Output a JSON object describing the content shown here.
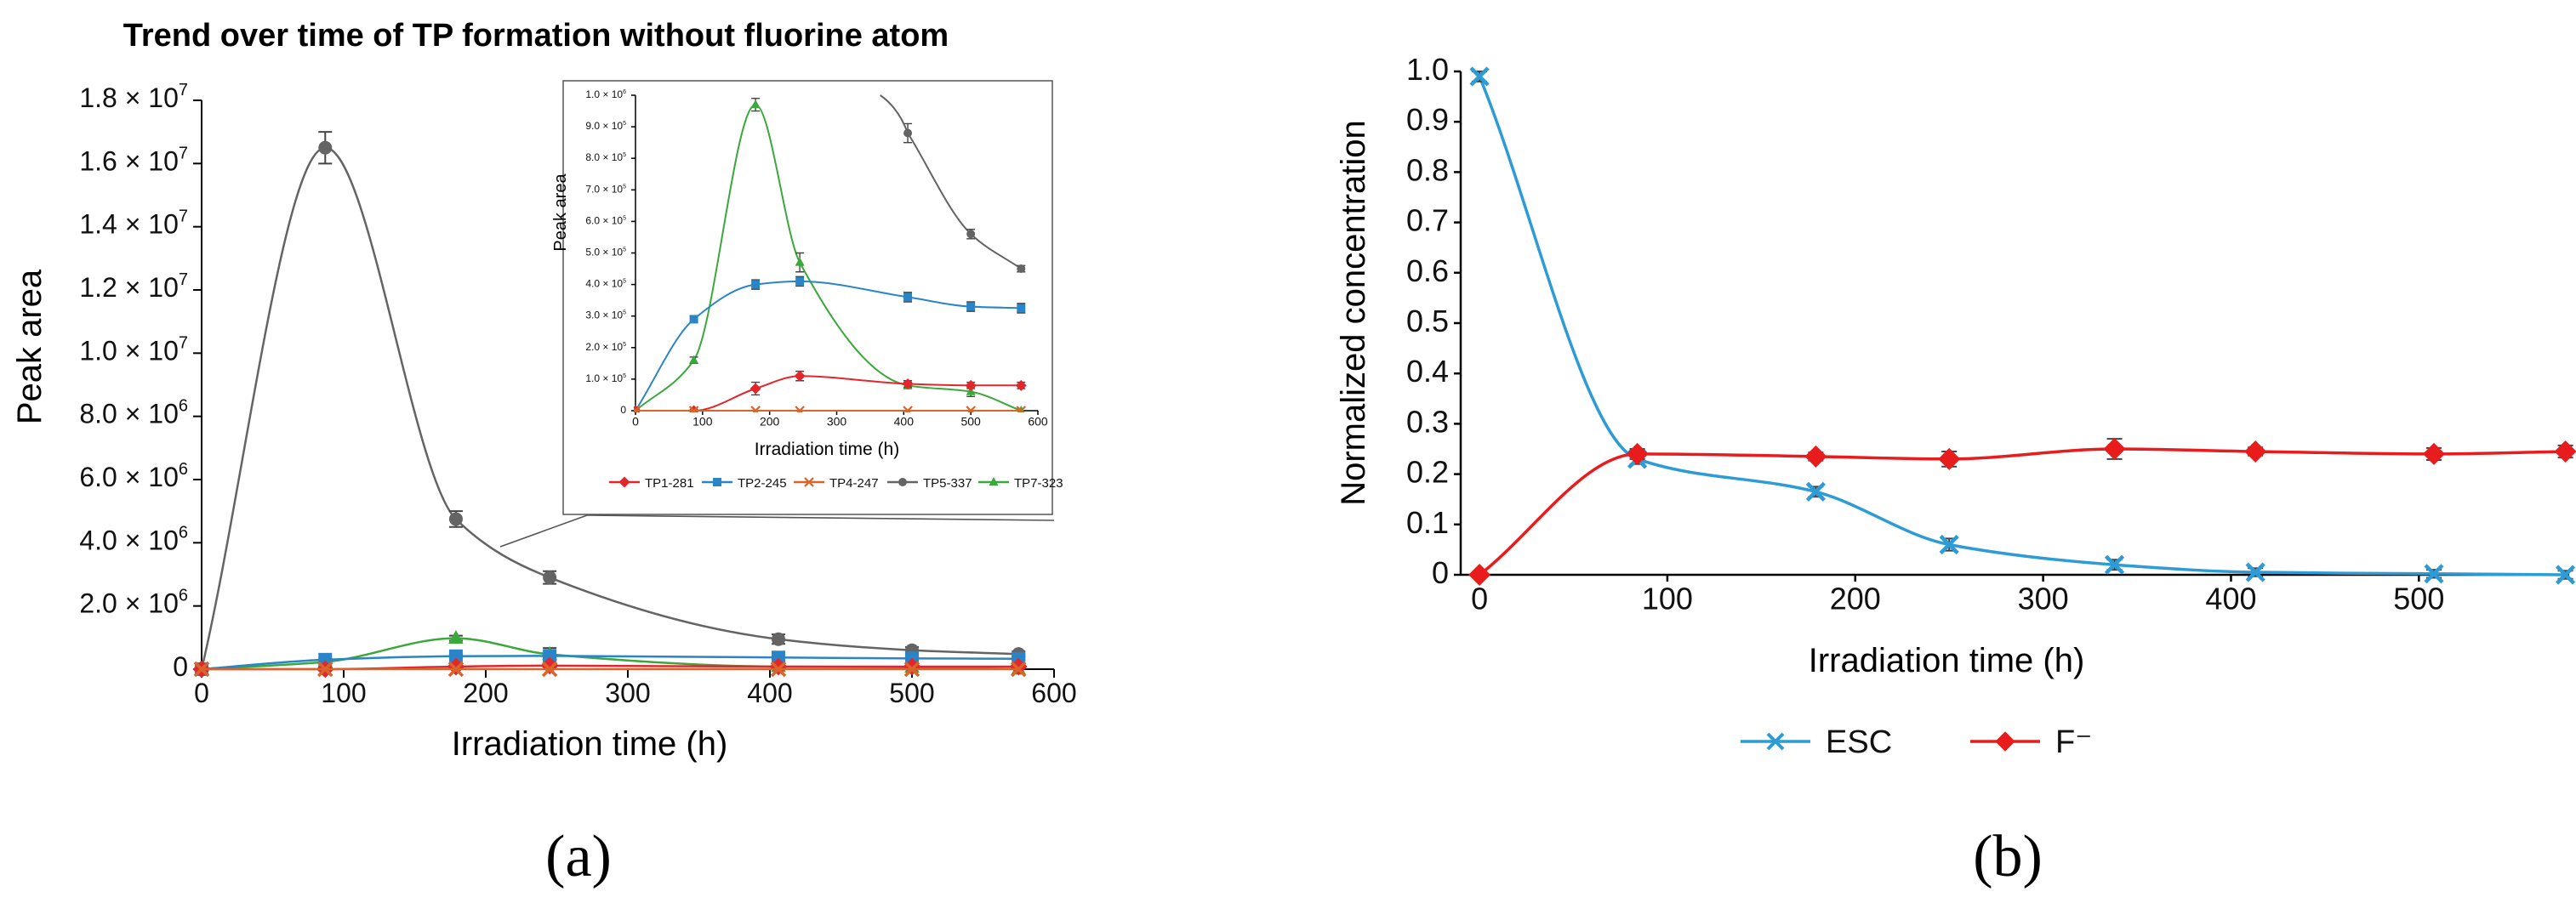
{
  "colors": {
    "TP1": "#e3262b",
    "TP2": "#2a84c8",
    "TP4": "#d9652b",
    "TP5": "#646464",
    "TP7": "#3aa83a",
    "ESC": "#2d9bd6",
    "F": "#e81c1c",
    "axis": "#000000"
  },
  "panel_labels": {
    "a": "(a)",
    "b": "(b)"
  },
  "chart_data": [
    {
      "id": "a-main",
      "type": "line",
      "title": "Trend over time of TP formation without fluorine atom",
      "xlabel": "Irradiation time (h)",
      "ylabel": "Peak area",
      "xlim": [
        0,
        600
      ],
      "ylim": [
        0,
        18000000
      ],
      "xticks": [
        0,
        100,
        200,
        300,
        400,
        500,
        600
      ],
      "xtick_labels": [
        "0",
        "100",
        "200",
        "300",
        "400",
        "500",
        "600"
      ],
      "yticks": [
        {
          "v": 0,
          "m": "0",
          "e": ""
        },
        {
          "v": 2000000,
          "m": "2.0 × 10",
          "e": "6"
        },
        {
          "v": 4000000,
          "m": "4.0 × 10",
          "e": "6"
        },
        {
          "v": 6000000,
          "m": "6.0 × 10",
          "e": "6"
        },
        {
          "v": 8000000,
          "m": "8.0 × 10",
          "e": "6"
        },
        {
          "v": 10000000,
          "m": "1.0 × 10",
          "e": "7"
        },
        {
          "v": 12000000,
          "m": "1.2 × 10",
          "e": "7"
        },
        {
          "v": 14000000,
          "m": "1.4 × 10",
          "e": "7"
        },
        {
          "v": 16000000,
          "m": "1.6 × 10",
          "e": "7"
        },
        {
          "v": 18000000,
          "m": "1.8 × 10",
          "e": "7"
        }
      ],
      "x": [
        0,
        87,
        179,
        245,
        406,
        500,
        575
      ],
      "series": [
        {
          "name": "TP5-337",
          "key": "TP5",
          "marker": "circle",
          "y": [
            0,
            16500000,
            4750000,
            2900000,
            950000,
            600000,
            480000
          ],
          "err": [
            0,
            500000,
            250000,
            200000,
            150000,
            100000,
            80000
          ]
        },
        {
          "name": "TP7-323",
          "key": "TP7",
          "marker": "triangle",
          "y": [
            0,
            230000,
            980000,
            470000,
            80000,
            60000,
            0
          ],
          "err": [
            0,
            50000,
            80000,
            200000,
            30000,
            20000,
            0
          ]
        },
        {
          "name": "TP2-245",
          "key": "TP2",
          "marker": "square",
          "y": [
            0,
            300000,
            410000,
            420000,
            370000,
            340000,
            330000
          ],
          "err": [
            0,
            40000,
            40000,
            40000,
            40000,
            40000,
            40000
          ]
        },
        {
          "name": "TP1-281",
          "key": "TP1",
          "marker": "diamond",
          "y": [
            0,
            0,
            80000,
            110000,
            80000,
            80000,
            80000
          ],
          "err": [
            0,
            0,
            20000,
            20000,
            15000,
            15000,
            15000
          ]
        },
        {
          "name": "TP4-247",
          "key": "TP4",
          "marker": "x",
          "y": [
            0,
            0,
            0,
            0,
            0,
            0,
            0
          ],
          "err": [
            0,
            0,
            0,
            0,
            0,
            0,
            0
          ]
        }
      ]
    },
    {
      "id": "a-inset",
      "type": "line",
      "xlabel": "Irradiation time (h)",
      "ylabel": "Peak area",
      "xlim": [
        0,
        600
      ],
      "ylim": [
        0,
        1000000
      ],
      "xticks": [
        0,
        100,
        200,
        300,
        400,
        500,
        600
      ],
      "xtick_labels": [
        "0",
        "100",
        "200",
        "300",
        "400",
        "500",
        "600"
      ],
      "yticks": [
        {
          "v": 0,
          "m": "0",
          "e": ""
        },
        {
          "v": 100000,
          "m": "1.0 × 10",
          "e": "5"
        },
        {
          "v": 200000,
          "m": "2.0 × 10",
          "e": "5"
        },
        {
          "v": 300000,
          "m": "3.0 × 10",
          "e": "5"
        },
        {
          "v": 400000,
          "m": "4.0 × 10",
          "e": "5"
        },
        {
          "v": 500000,
          "m": "5.0 × 10",
          "e": "5"
        },
        {
          "v": 600000,
          "m": "6.0 × 10",
          "e": "5"
        },
        {
          "v": 700000,
          "m": "7.0 × 10",
          "e": "5"
        },
        {
          "v": 800000,
          "m": "8.0 × 10",
          "e": "5"
        },
        {
          "v": 900000,
          "m": "9.0 × 10",
          "e": "5"
        },
        {
          "v": 1000000,
          "m": "1.0 × 10",
          "e": "6"
        }
      ],
      "series": [
        {
          "name": "TP7-323",
          "key": "TP7",
          "marker": "triangle",
          "x": [
            0,
            87,
            179,
            245,
            406,
            500,
            575
          ],
          "y": [
            0,
            160000,
            970000,
            470000,
            80000,
            60000,
            0
          ],
          "err": [
            0,
            10000,
            20000,
            30000,
            10000,
            15000,
            0
          ]
        },
        {
          "name": "TP2-245",
          "key": "TP2",
          "marker": "square",
          "x": [
            0,
            87,
            179,
            245,
            406,
            500,
            575
          ],
          "y": [
            0,
            290000,
            400000,
            410000,
            360000,
            330000,
            325000
          ],
          "err": [
            0,
            10000,
            15000,
            15000,
            15000,
            15000,
            15000
          ]
        },
        {
          "name": "TP1-281",
          "key": "TP1",
          "marker": "diamond",
          "x": [
            0,
            87,
            179,
            245,
            406,
            500,
            575
          ],
          "y": [
            0,
            0,
            70000,
            110000,
            85000,
            80000,
            80000
          ],
          "err": [
            0,
            0,
            20000,
            15000,
            10000,
            10000,
            10000
          ]
        },
        {
          "name": "TP4-247",
          "key": "TP4",
          "marker": "x",
          "x": [
            0,
            87,
            179,
            245,
            406,
            500,
            575
          ],
          "y": [
            0,
            0,
            0,
            0,
            0,
            0,
            0
          ],
          "err": [
            0,
            0,
            0,
            0,
            0,
            0,
            0
          ]
        },
        {
          "name": "TP5-337",
          "key": "TP5",
          "marker": "circle",
          "x": [
            406,
            500,
            575
          ],
          "y": [
            880000,
            560000,
            450000
          ],
          "err": [
            30000,
            15000,
            10000
          ]
        }
      ],
      "legend": [
        "TP1-281",
        "TP2-245",
        "TP4-247",
        "TP5-337",
        "TP7-323"
      ],
      "legend_placement": "bottom"
    },
    {
      "id": "b",
      "type": "line",
      "xlabel": "Irradiation time (h)",
      "ylabel": "Normalized concentration",
      "xlim": [
        -10,
        580
      ],
      "ylim": [
        0,
        1.0
      ],
      "xticks": [
        0,
        100,
        200,
        300,
        400,
        500
      ],
      "xtick_labels": [
        "0",
        "100",
        "200",
        "300",
        "400",
        "500"
      ],
      "yticks": [
        {
          "v": 0,
          "m": "0",
          "e": ""
        },
        {
          "v": 0.1,
          "m": "0.1",
          "e": ""
        },
        {
          "v": 0.2,
          "m": "0.2",
          "e": ""
        },
        {
          "v": 0.3,
          "m": "0.3",
          "e": ""
        },
        {
          "v": 0.4,
          "m": "0.4",
          "e": ""
        },
        {
          "v": 0.5,
          "m": "0.5",
          "e": ""
        },
        {
          "v": 0.6,
          "m": "0.6",
          "e": ""
        },
        {
          "v": 0.7,
          "m": "0.7",
          "e": ""
        },
        {
          "v": 0.8,
          "m": "0.8",
          "e": ""
        },
        {
          "v": 0.9,
          "m": "0.9",
          "e": ""
        },
        {
          "v": 1.0,
          "m": "1.0",
          "e": ""
        }
      ],
      "x": [
        0,
        84,
        179,
        250,
        338,
        413,
        508,
        578
      ],
      "series": [
        {
          "name": "ESC",
          "key": "ESC",
          "marker": "x",
          "y": [
            0.99,
            0.23,
            0.165,
            0.06,
            0.02,
            0.005,
            0.002,
            0.0
          ],
          "err": [
            0.01,
            0.01,
            0.01,
            0.012,
            0.01,
            0.008,
            0.008,
            0.008
          ]
        },
        {
          "name": "F⁻",
          "key": "F",
          "marker": "diamond",
          "y": [
            0.0,
            0.24,
            0.235,
            0.23,
            0.25,
            0.245,
            0.24,
            0.245
          ],
          "err": [
            0,
            0.01,
            0.008,
            0.015,
            0.02,
            0.008,
            0.012,
            0.012
          ]
        }
      ],
      "legend": [
        "ESC",
        "F⁻"
      ],
      "legend_placement": "bottom"
    }
  ]
}
